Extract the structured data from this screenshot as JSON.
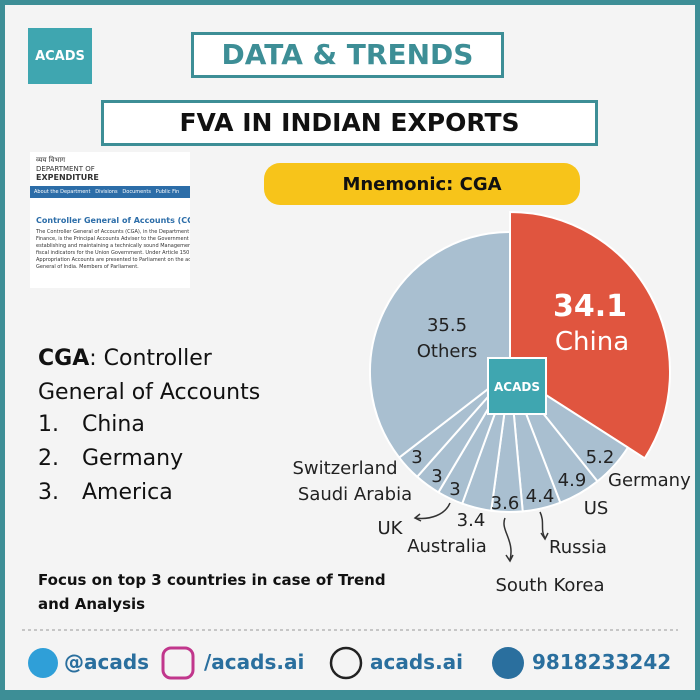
{
  "logo": "ACADS",
  "header": {
    "title": "DATA & TRENDS",
    "subtitle": "FVA IN INDIAN EXPORTS",
    "mnemonic": "Mnemonic: CGA"
  },
  "screenshot": {
    "dept_hindi": "व्यय विभाग",
    "dept_line1": "DEPARTMENT OF",
    "dept_line2": "EXPENDITURE",
    "nav": [
      "About the Department",
      "Divisions",
      "Documents",
      "Public Fin"
    ],
    "heading": "Controller General of Accounts (CGA)",
    "body": "The Controller General of Accounts (CGA), in the Department of Expenditure, Ministry of Finance, is the Principal Accounts Adviser to the Government of India and is responsible for establishing and maintaining a technically sound Management Accounting System and various fiscal indicators for the Union Government. Under Article 150 of the Constitution, the annual Appropriation Accounts are presented to Parliament on the advice of Comptroller and Auditor General of India. Members of Parliament."
  },
  "definition": {
    "term": "CGA",
    "text": ": Controller General of Accounts"
  },
  "list": [
    {
      "number": "1.",
      "text": "China"
    },
    {
      "number": "2.",
      "text": "Germany"
    },
    {
      "number": "3.",
      "text": "America"
    }
  ],
  "note": "Focus on top 3 countries in case of Trend and Analysis",
  "chart_data": {
    "type": "pie",
    "categories": [
      "China",
      "Germany",
      "US",
      "Russia",
      "South Korea",
      "Australia",
      "UK",
      "Saudi Arabia",
      "Switzerland",
      "Others"
    ],
    "values": [
      34.1,
      5.2,
      4.9,
      4.4,
      3.6,
      3.4,
      3,
      3,
      3,
      35.5
    ],
    "colors": [
      "#e0553f",
      "#a9bfd0",
      "#a9bfd0",
      "#a9bfd0",
      "#a9bfd0",
      "#a9bfd0",
      "#a9bfd0",
      "#a9bfd0",
      "#a9bfd0",
      "#a9bfd0"
    ]
  },
  "footer": {
    "telegram": "@acads",
    "instagram": "/acads.ai",
    "web": "acads.ai",
    "phone": "9818233242"
  }
}
